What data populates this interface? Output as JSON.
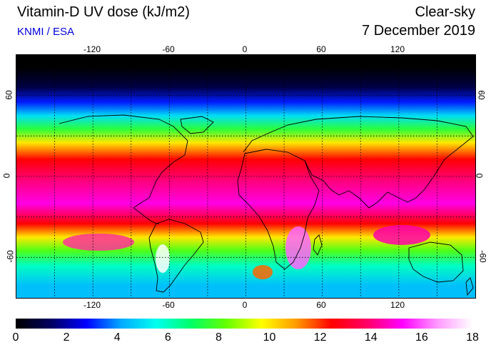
{
  "header": {
    "title": "Vitamin-D UV dose (kJ/m2)",
    "credit": "KNMI / ESA",
    "condition": "Clear-sky",
    "date": "7 December 2019"
  },
  "map": {
    "projection": "equirectangular",
    "lon_range": [
      -180,
      180
    ],
    "lat_range": [
      -90,
      90
    ],
    "lon_ticks": [
      "-120",
      "-60",
      "0",
      "60",
      "120"
    ],
    "lat_ticks": [
      "60",
      "0",
      "-60"
    ],
    "gridlines": "dotted",
    "coastlines": true,
    "legend_placement": "bottom",
    "color_scale": {
      "min": 0,
      "max": 18,
      "labels": [
        "0",
        "2",
        "4",
        "6",
        "8",
        "10",
        "12",
        "14",
        "16",
        "18"
      ],
      "colors": [
        "#000000",
        "#000060",
        "#0000ff",
        "#00aaff",
        "#00ffee",
        "#00ff66",
        "#66ff00",
        "#ffff00",
        "#ff9900",
        "#ff0000",
        "#ff0066",
        "#ff00ff",
        "#ff99ff",
        "#ffffff"
      ]
    },
    "zones": [
      {
        "lat_from": 90,
        "lat_to": 72,
        "dose": 0
      },
      {
        "lat_from": 72,
        "lat_to": 60,
        "dose": 1
      },
      {
        "lat_from": 60,
        "lat_to": 50,
        "dose": 3
      },
      {
        "lat_from": 50,
        "lat_to": 40,
        "dose": 5
      },
      {
        "lat_from": 40,
        "lat_to": 30,
        "dose": 7.5
      },
      {
        "lat_from": 30,
        "lat_to": 20,
        "dose": 10
      },
      {
        "lat_from": 20,
        "lat_to": 5,
        "dose": 12.5
      },
      {
        "lat_from": 5,
        "lat_to": -10,
        "dose": 14
      },
      {
        "lat_from": -10,
        "lat_to": -30,
        "dose": 15
      },
      {
        "lat_from": -30,
        "lat_to": -40,
        "dose": 12.5
      },
      {
        "lat_from": -40,
        "lat_to": -50,
        "dose": 10
      },
      {
        "lat_from": -50,
        "lat_to": -60,
        "dose": 8
      },
      {
        "lat_from": -60,
        "lat_to": -72,
        "dose": 6
      },
      {
        "lat_from": -72,
        "lat_to": -90,
        "dose": 4.5
      }
    ]
  }
}
